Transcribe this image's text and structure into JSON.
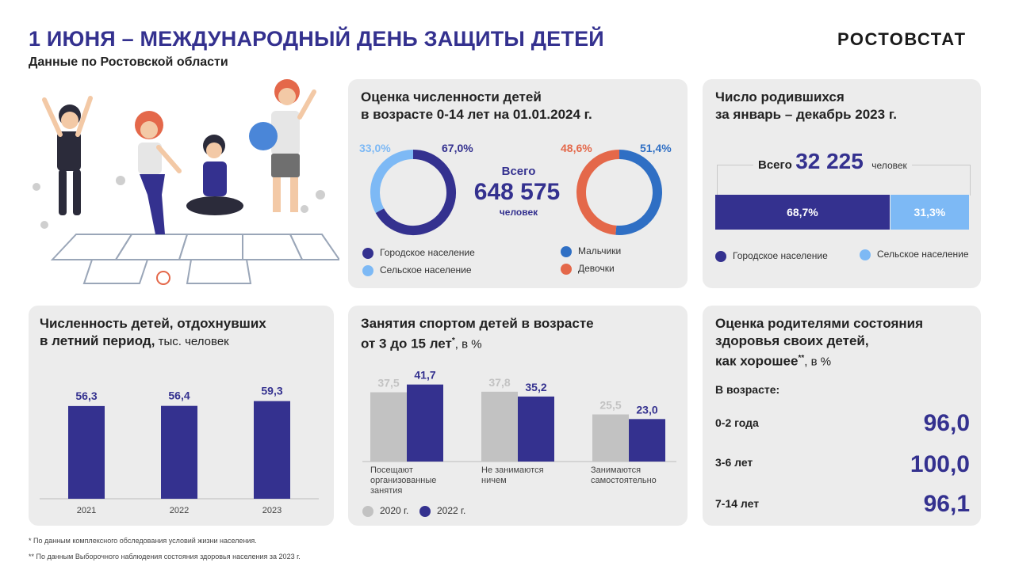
{
  "header": {
    "title": "1 ИЮНЯ – МЕЖДУНАРОДНЫЙ ДЕНЬ ЗАЩИТЫ ДЕТЕЙ",
    "subtitle": "Данные по Ростовской области",
    "brand": "РОСТОВСТАТ"
  },
  "population": {
    "title_line1": "Оценка численности детей",
    "title_line2": "в возрасте 0-14 лет на 01.01.2024 г.",
    "total_label": "Всего",
    "total_value": "648 575",
    "total_unit": "человек",
    "urban_label": "67,0%",
    "rural_label": "33,0%",
    "boys_label": "51,4%",
    "girls_label": "48,6%",
    "legend_urban": "Городское население",
    "legend_rural": "Сельское население",
    "legend_boys": "Мальчики",
    "legend_girls": "Девочки",
    "colors": {
      "urban": "#34318f",
      "rural": "#7db9f5",
      "boys": "#2f6fc4",
      "girls": "#e4684a"
    }
  },
  "births": {
    "title_line1": "Число родившихся",
    "title_line2": "за январь – декабрь 2023 г.",
    "total_label": "Всего",
    "total_value": "32 225",
    "total_unit": "человек",
    "urban_label": "68,7%",
    "rural_label": "31,3%",
    "legend_urban": "Городское население",
    "legend_rural": "Сельское население"
  },
  "rest": {
    "title_line1": "Численность детей, отдохнувших",
    "title_line2": "в летний период,",
    "unit": " тыс. человек"
  },
  "sport": {
    "title_line1": "Занятия спортом детей в возрасте",
    "title_line2": "от 3 до 15 лет",
    "title_sup": "*",
    "unit": ", в %",
    "cat1_line1": "Посещают",
    "cat1_line2": "организованные",
    "cat1_line3": "занятия",
    "cat2_line1": "Не занимаются",
    "cat2_line2": "ничем",
    "cat3_line1": "Занимаются",
    "cat3_line2": "самостоятельно",
    "legend_2020": "2020 г.",
    "legend_2022": "2022 г."
  },
  "health": {
    "title_line1": "Оценка родителями состояния",
    "title_line2": "здоровья своих детей,",
    "title_line3": "как хорошее",
    "title_sup": "**",
    "unit": ", в %",
    "age_header": "В возрасте:",
    "rows": [
      {
        "age": "0-2 года",
        "value": "96,0"
      },
      {
        "age": "3-6 лет",
        "value": "100,0"
      },
      {
        "age": "7-14 лет",
        "value": "96,1"
      }
    ]
  },
  "footnotes": {
    "f1": "* По данным комплексного обследования условий жизни населения.",
    "f2": "** По данным  Выборочного наблюдения состояния здоровья населения за 2023 г."
  },
  "chart_data": [
    {
      "type": "pie",
      "categories": [
        "Городское население",
        "Сельское население"
      ],
      "values": [
        67.0,
        33.0
      ]
    },
    {
      "type": "pie",
      "categories": [
        "Мальчики",
        "Девочки"
      ],
      "values": [
        51.4,
        48.6
      ]
    },
    {
      "type": "bar",
      "categories": [
        "Городское население",
        "Сельское население"
      ],
      "values": [
        68.7,
        31.3
      ]
    },
    {
      "type": "bar",
      "categories": [
        "2021",
        "2022",
        "2023"
      ],
      "values": [
        56.3,
        56.4,
        59.3
      ],
      "value_labels": [
        "56,3",
        "56,4",
        "59,3"
      ]
    },
    {
      "type": "bar",
      "categories": [
        "Посещают организованные занятия",
        "Не занимаются ничем",
        "Занимаются самостоятельно"
      ],
      "series": [
        {
          "name": "2020 г.",
          "values": [
            37.5,
            37.8,
            25.5
          ],
          "labels": [
            "37,5",
            "37,8",
            "25,5"
          ],
          "color": "#c2c2c2"
        },
        {
          "name": "2022 г.",
          "values": [
            41.7,
            35.2,
            23.0
          ],
          "labels": [
            "41,7",
            "35,2",
            "23,0"
          ],
          "color": "#34318f"
        }
      ]
    },
    {
      "type": "table",
      "categories": [
        "0-2 года",
        "3-6 лет",
        "7-14 лет"
      ],
      "values": [
        96.0,
        100.0,
        96.1
      ]
    }
  ]
}
